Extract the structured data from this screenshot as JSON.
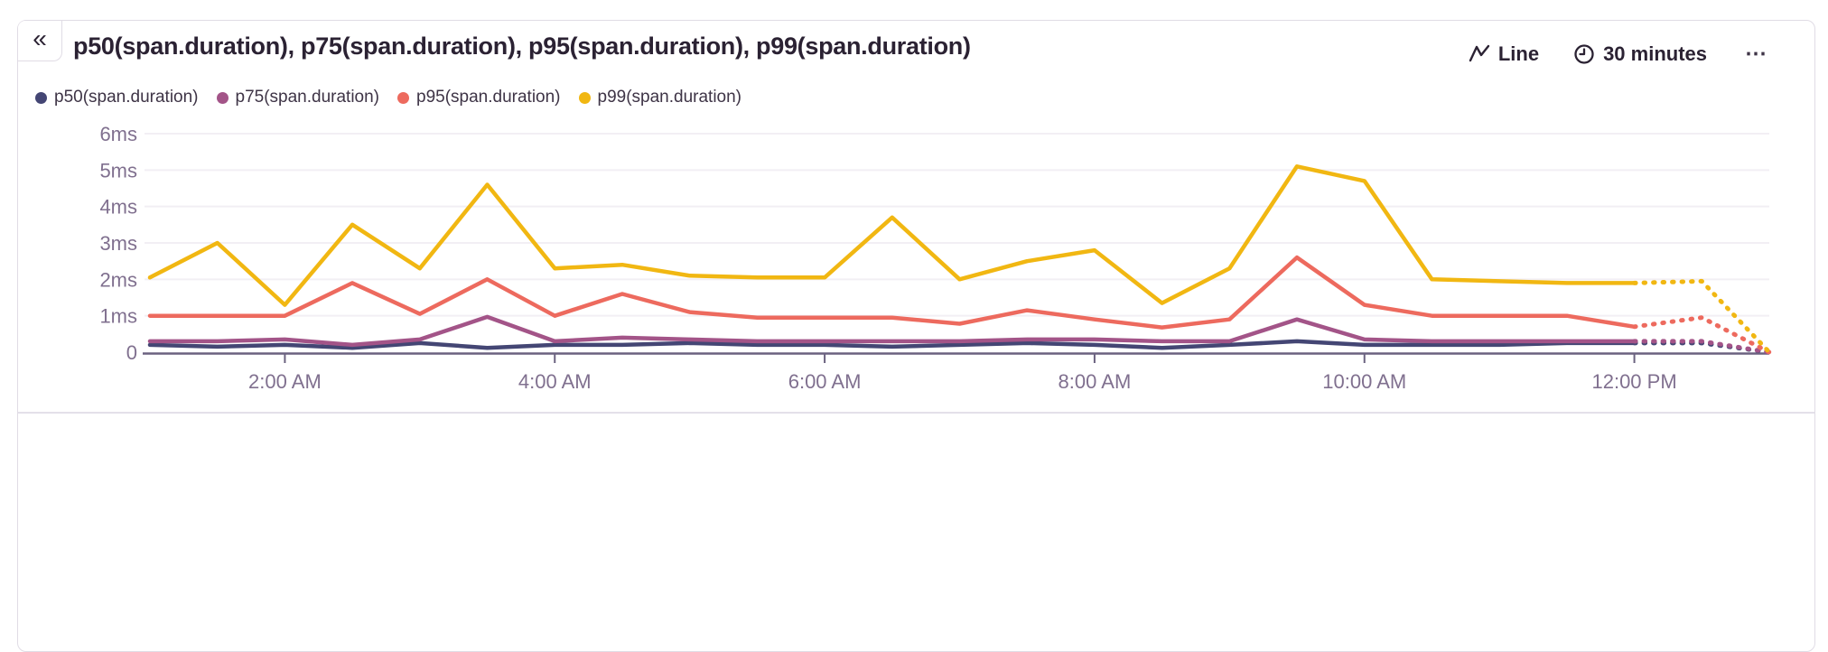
{
  "header": {
    "title": "p50(span.duration), p75(span.duration), p95(span.duration), p99(span.duration)"
  },
  "icons": {
    "chevron_double_left": "«",
    "ellipsis": "⋯"
  },
  "controls": {
    "display_type_label": "Line",
    "time_interval_label": "30 minutes"
  },
  "colors": {
    "title_text": "#2b2233",
    "axis_text": "#80708f",
    "axis_line": "#6b6280",
    "gridline": "#f2eff4",
    "card_border": "#e0dce5",
    "p50": "#444674",
    "p75": "#a35488",
    "p95": "#ed6a5e",
    "p99": "#f1b712"
  },
  "chart_data": {
    "type": "line",
    "title": "p50(span.duration), p75(span.duration), p95(span.duration), p99(span.duration)",
    "interval": "30 minutes",
    "unit": "ms",
    "ylim": [
      0,
      6
    ],
    "y_tick_labels": [
      "0",
      "1ms",
      "2ms",
      "3ms",
      "4ms",
      "5ms",
      "6ms"
    ],
    "x_ticks": [
      {
        "index": 2,
        "label": "2:00 AM"
      },
      {
        "index": 6,
        "label": "4:00 AM"
      },
      {
        "index": 10,
        "label": "6:00 AM"
      },
      {
        "index": 14,
        "label": "8:00 AM"
      },
      {
        "index": 18,
        "label": "10:00 AM"
      },
      {
        "index": 22,
        "label": "12:00 PM"
      }
    ],
    "x_start": "1:00 AM",
    "x_end": "1:00 PM",
    "dotted_from_index": 22,
    "legend_position": "top-left",
    "grid": true,
    "series": [
      {
        "name": "p50(span.duration)",
        "color": "#444674",
        "values": [
          0.2,
          0.15,
          0.2,
          0.12,
          0.25,
          0.12,
          0.2,
          0.2,
          0.25,
          0.2,
          0.2,
          0.15,
          0.2,
          0.25,
          0.2,
          0.12,
          0.2,
          0.3,
          0.2,
          0.2,
          0.2,
          0.25,
          0.25,
          0.25,
          0
        ]
      },
      {
        "name": "p75(span.duration)",
        "color": "#a35488",
        "values": [
          0.3,
          0.3,
          0.35,
          0.2,
          0.35,
          0.97,
          0.3,
          0.4,
          0.35,
          0.3,
          0.3,
          0.3,
          0.3,
          0.35,
          0.35,
          0.3,
          0.3,
          0.9,
          0.35,
          0.3,
          0.3,
          0.3,
          0.3,
          0.3,
          0
        ]
      },
      {
        "name": "p95(span.duration)",
        "color": "#ed6a5e",
        "values": [
          1.0,
          1.0,
          1.0,
          1.9,
          1.05,
          2.0,
          1.0,
          1.6,
          1.1,
          0.95,
          0.95,
          0.95,
          0.78,
          1.15,
          0.9,
          0.68,
          0.9,
          2.6,
          1.3,
          1.0,
          1.0,
          1.0,
          0.7,
          0.95,
          0
        ]
      },
      {
        "name": "p99(span.duration)",
        "color": "#f1b712",
        "values": [
          2.05,
          3.0,
          1.3,
          3.5,
          2.3,
          4.6,
          2.3,
          2.4,
          2.1,
          2.05,
          2.05,
          3.7,
          2.0,
          2.5,
          2.8,
          1.35,
          2.3,
          5.1,
          4.7,
          2.0,
          1.95,
          1.9,
          1.9,
          1.95,
          0
        ]
      }
    ]
  }
}
